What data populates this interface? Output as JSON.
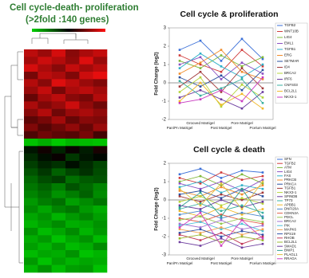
{
  "chart_data": [
    {
      "type": "heatmap",
      "title": "Cell cycle-death- proliferation",
      "subtitle": "(>2fold :140 genes)",
      "zlim": [
        -3,
        3
      ],
      "colors": [
        "#00d000",
        "#000000",
        "#ff1010"
      ],
      "values": [
        [
          2.2,
          1.8,
          2.5,
          1.6,
          2.0,
          2.3
        ],
        [
          1.9,
          2.4,
          2.1,
          1.7,
          2.6,
          1.8
        ],
        [
          2.5,
          2.0,
          1.6,
          2.3,
          1.9,
          2.2
        ],
        [
          1.4,
          2.2,
          2.0,
          1.5,
          2.4,
          2.7
        ],
        [
          2.1,
          1.6,
          2.6,
          2.2,
          1.8,
          1.5
        ],
        [
          1.8,
          2.3,
          1.4,
          2.0,
          2.2,
          1.9
        ],
        [
          1.2,
          1.9,
          2.2,
          1.6,
          1.4,
          2.1
        ],
        [
          2.0,
          1.5,
          1.8,
          2.4,
          1.7,
          1.3
        ],
        [
          1.6,
          2.1,
          1.3,
          1.8,
          2.0,
          1.7
        ],
        [
          1.1,
          1.4,
          1.9,
          1.2,
          1.6,
          1.5
        ],
        [
          1.5,
          1.0,
          1.3,
          1.7,
          1.2,
          1.8
        ],
        [
          0.9,
          1.3,
          1.1,
          1.0,
          1.4,
          0.8
        ],
        [
          -2.8,
          -2.5,
          -2.9,
          -2.6,
          -2.7,
          -2.8
        ],
        [
          -0.3,
          0.2,
          -0.5,
          0.1,
          -0.4,
          0.3
        ],
        [
          -0.6,
          -0.2,
          0.1,
          -0.8,
          -0.3,
          -0.1
        ],
        [
          -0.9,
          -0.5,
          -0.7,
          -0.2,
          -0.6,
          -1.0
        ],
        [
          -1.2,
          -0.8,
          -1.4,
          -1.0,
          -0.7,
          -1.1
        ],
        [
          -1.5,
          -1.1,
          -0.9,
          -1.6,
          -1.3,
          -1.2
        ],
        [
          -1.7,
          -1.4,
          -1.8,
          -1.2,
          -1.5,
          -1.9
        ],
        [
          -1.9,
          -1.6,
          -2.1,
          -1.8,
          -1.4,
          -2.0
        ],
        [
          -2.2,
          -1.8,
          -1.6,
          -2.3,
          -2.0,
          -1.7
        ],
        [
          -2.0,
          -2.4,
          -1.9,
          -1.7,
          -2.2,
          -2.5
        ],
        [
          -2.4,
          -2.1,
          -2.6,
          -2.2,
          -1.9,
          -2.3
        ],
        [
          -2.6,
          -2.3,
          -2.0,
          -2.5,
          -2.4,
          -2.1
        ],
        [
          -2.1,
          -2.7,
          -2.4,
          -2.0,
          -2.6,
          -2.2
        ],
        [
          -2.5,
          -2.2,
          -2.8,
          -2.4,
          -2.1,
          -2.7
        ],
        [
          -2.3,
          -2.6,
          -2.2,
          -2.7,
          -2.5,
          -2.0
        ],
        [
          -2.7,
          -2.4,
          -2.5,
          -2.1,
          -2.8,
          -2.6
        ],
        [
          -2.2,
          -2.8,
          -2.3,
          -2.6,
          -2.4,
          -2.5
        ],
        [
          -2.6,
          -2.1,
          -2.7,
          -2.3,
          -2.2,
          -2.8
        ]
      ]
    },
    {
      "type": "line",
      "title": "Cell cycle & proliferation",
      "y_label": "Fold Change (log2)",
      "categories": [
        "Pan/Pn Matrigel",
        "Grooved Matrigel",
        "Post Matrigel",
        "Pore Matrigel",
        "Pcelum Matrigel"
      ],
      "ylim": [
        -2,
        3
      ],
      "yticks": [
        -2,
        -1,
        0,
        1,
        2,
        3
      ],
      "series": [
        {
          "name": "TGFB2",
          "color": "#3a6fd8",
          "values": [
            1.8,
            2.3,
            1.2,
            2.4,
            1.3
          ]
        },
        {
          "name": "WNT10B",
          "color": "#d03a3a",
          "values": [
            1.5,
            1.0,
            0.6,
            1.8,
            0.9
          ]
        },
        {
          "name": "LIG4",
          "color": "#7fb83a",
          "values": [
            1.2,
            0.8,
            1.5,
            0.9,
            1.4
          ]
        },
        {
          "name": "EML1",
          "color": "#8a4fc2",
          "values": [
            1.0,
            1.4,
            0.2,
            1.1,
            0.5
          ]
        },
        {
          "name": "TGFB1",
          "color": "#2fb0c8",
          "values": [
            0.8,
            1.6,
            0.9,
            0.3,
            1.0
          ]
        },
        {
          "name": "ERG",
          "color": "#f08c2a",
          "values": [
            0.5,
            1.1,
            1.8,
            0.6,
            0.2
          ]
        },
        {
          "name": "SETMAR",
          "color": "#2a4f9e",
          "values": [
            0.3,
            -0.2,
            0.4,
            -0.4,
            0.7
          ]
        },
        {
          "name": "ID4",
          "color": "#a33a3a",
          "values": [
            -0.2,
            0.6,
            -0.5,
            0.8,
            -0.3
          ]
        },
        {
          "name": "BRCA2",
          "color": "#b5d43a",
          "values": [
            -0.5,
            0.3,
            -1.3,
            -0.1,
            -0.8
          ]
        },
        {
          "name": "IRF6",
          "color": "#6a3a9e",
          "values": [
            -0.8,
            -0.4,
            -0.9,
            -1.4,
            -0.5
          ]
        },
        {
          "name": "CNFS03",
          "color": "#3ab0a0",
          "values": [
            0.1,
            -0.7,
            -0.3,
            0.2,
            -1.1
          ]
        },
        {
          "name": "BCL2L1",
          "color": "#f0b82a",
          "values": [
            -1.0,
            0.0,
            -1.2,
            -0.6,
            -1.4
          ]
        },
        {
          "name": "NKX3-1",
          "color": "#c83ac0",
          "values": [
            -1.1,
            -0.9,
            -0.4,
            -1.0,
            0.3
          ]
        }
      ]
    },
    {
      "type": "line",
      "title": "Cell cycle & death",
      "y_label": "Fold Change (log2)",
      "categories": [
        "Pan/Pn Matrigel",
        "Grooved Matrigel",
        "Post Matrigel",
        "Pore Matrigel",
        "Pcelum Matrigel"
      ],
      "ylim": [
        -3,
        2
      ],
      "yticks": [
        -3,
        -2,
        -1,
        0,
        1,
        2
      ],
      "series": [
        {
          "name": "SFN",
          "color": "#3a6fd8",
          "values": [
            1.4,
            1.7,
            1.2,
            1.6,
            1.5
          ]
        },
        {
          "name": "TGFB2",
          "color": "#d03a3a",
          "values": [
            1.2,
            0.9,
            1.5,
            1.1,
            1.3
          ]
        },
        {
          "name": "ATM",
          "color": "#7fb83a",
          "values": [
            1.0,
            1.3,
            0.8,
            1.4,
            0.9
          ]
        },
        {
          "name": "LIG4",
          "color": "#8a4fc2",
          "values": [
            0.9,
            0.6,
            1.0,
            0.5,
            1.1
          ]
        },
        {
          "name": "FAS",
          "color": "#2fb0c8",
          "values": [
            0.7,
            1.0,
            0.4,
            0.8,
            0.6
          ]
        },
        {
          "name": "PRKCB",
          "color": "#f08c2a",
          "values": [
            0.5,
            0.2,
            0.7,
            0.3,
            0.8
          ]
        },
        {
          "name": "PRKCA",
          "color": "#2a4f9e",
          "values": [
            0.3,
            0.5,
            0.1,
            0.6,
            0.2
          ]
        },
        {
          "name": "TGFB1",
          "color": "#a33a3a",
          "values": [
            0.2,
            -0.1,
            0.3,
            0.0,
            0.4
          ]
        },
        {
          "name": "NKX3-1",
          "color": "#b5d43a",
          "values": [
            -0.1,
            0.2,
            -0.3,
            0.1,
            -0.2
          ]
        },
        {
          "name": "SPINDB",
          "color": "#6a3a9e",
          "values": [
            -0.3,
            -0.5,
            0.0,
            -0.4,
            -0.1
          ]
        },
        {
          "name": "TP73",
          "color": "#3ab0a0",
          "values": [
            -0.5,
            -0.2,
            -0.6,
            -0.3,
            -0.7
          ]
        },
        {
          "name": "APBB1",
          "color": "#f0b82a",
          "values": [
            -0.6,
            -0.9,
            -0.4,
            -0.8,
            -0.5
          ]
        },
        {
          "name": "DNFI20A",
          "color": "#4a86c8",
          "values": [
            -0.8,
            -0.6,
            -1.0,
            -0.7,
            -0.9
          ]
        },
        {
          "name": "CDKN2A",
          "color": "#e0604a",
          "values": [
            -1.0,
            -1.2,
            -0.8,
            -1.1,
            -1.3
          ]
        },
        {
          "name": "PDCL",
          "color": "#96c850",
          "values": [
            -1.1,
            -0.9,
            -1.3,
            -1.0,
            -1.2
          ]
        },
        {
          "name": "BRCA2",
          "color": "#a070d0",
          "values": [
            -1.3,
            -1.5,
            -1.1,
            -1.6,
            -1.4
          ]
        },
        {
          "name": "PIK",
          "color": "#50c0d8",
          "values": [
            -1.4,
            -1.2,
            -1.6,
            -1.3,
            -1.7
          ]
        },
        {
          "name": "MAPK6",
          "color": "#f0a050",
          "values": [
            -1.6,
            -1.8,
            -1.5,
            -1.9,
            -1.6
          ]
        },
        {
          "name": "RPS19",
          "color": "#3050a8",
          "values": [
            -1.8,
            -1.6,
            -2.0,
            -1.7,
            -1.9
          ]
        },
        {
          "name": "RHOB",
          "color": "#c03a5a",
          "values": [
            -1.9,
            -2.2,
            -1.8,
            -2.4,
            -2.0
          ]
        },
        {
          "name": "BCL2L1",
          "color": "#9ab830",
          "values": [
            -2.1,
            -1.9,
            -2.3,
            -2.0,
            -2.2
          ]
        },
        {
          "name": "SMAD1",
          "color": "#7040a0",
          "values": [
            -2.3,
            -2.5,
            -2.1,
            -2.6,
            -2.4
          ]
        },
        {
          "name": "BNIP1",
          "color": "#30a090",
          "values": [
            -0.4,
            0.4,
            -0.9,
            0.6,
            -1.0
          ]
        },
        {
          "name": "PLAGL1",
          "color": "#e0c040",
          "values": [
            0.6,
            -0.3,
            0.9,
            -0.5,
            1.0
          ]
        },
        {
          "name": "RRAGA",
          "color": "#d040c0",
          "values": [
            -1.5,
            -0.7,
            -2.5,
            -1.1,
            -2.1
          ]
        }
      ]
    }
  ]
}
